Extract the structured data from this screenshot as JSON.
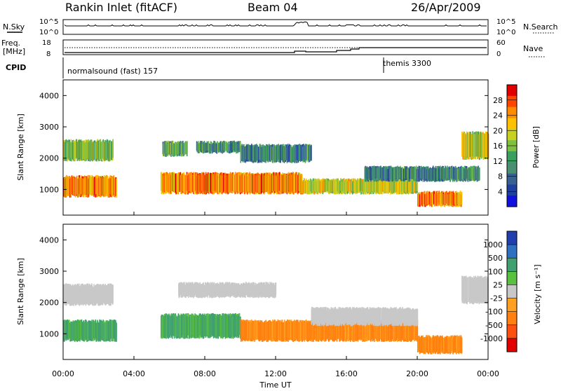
{
  "header": {
    "title": "Rankin Inlet (fitACF)",
    "beam": "Beam 04",
    "date": "26/Apr/2009"
  },
  "nsky_panel": {
    "left_label": "N.Sky",
    "right_label": "N.Search",
    "left_ticks": [
      "10^5",
      "10^0"
    ],
    "right_ticks": [
      "10^5",
      "10^0"
    ]
  },
  "freq_panel": {
    "left_label_1": "Freq.",
    "left_label_2": "[MHz]",
    "right_label": "Nave",
    "left_ticks": [
      "18",
      "8"
    ],
    "right_ticks": [
      "60",
      "0"
    ]
  },
  "cpid_panel": {
    "label": "CPID",
    "modes": [
      {
        "name": "normalsound (fast) 157",
        "start_hour": 0
      },
      {
        "name": "themis 3300",
        "start_hour": 18.1
      }
    ]
  },
  "chart_data": [
    {
      "type": "heatmap",
      "name": "power",
      "ylabel": "Slant Range [km]",
      "xlabel": "",
      "ylim": [
        180,
        4500
      ],
      "yticks": [
        "1000",
        "2000",
        "3000",
        "4000"
      ],
      "colorbar_label": "Power [dB]",
      "colorbar_ticks": [
        "28",
        "24",
        "20",
        "16",
        "12",
        "8",
        "4"
      ],
      "colorbar_colors": [
        "#e00000",
        "#ff4500",
        "#ff8c00",
        "#ffc000",
        "#c8d020",
        "#7fc040",
        "#3aa060",
        "#4a9070",
        "#3a6090",
        "#2040a0",
        "#1010e0"
      ],
      "echo_bands": [
        {
          "t0": 0.0,
          "t1": 2.8,
          "r_start": 1950,
          "r_end": 2550,
          "power_db": 14
        },
        {
          "t0": 0.0,
          "t1": 3.0,
          "r_start": 800,
          "r_end": 1400,
          "power_db": 22
        },
        {
          "t0": 5.6,
          "t1": 7.0,
          "r_start": 2100,
          "r_end": 2500,
          "power_db": 12
        },
        {
          "t0": 5.5,
          "t1": 13.5,
          "r_start": 900,
          "r_end": 1500,
          "power_db": 22
        },
        {
          "t0": 7.5,
          "t1": 10.0,
          "r_start": 2200,
          "r_end": 2500,
          "power_db": 8
        },
        {
          "t0": 10.0,
          "t1": 14.0,
          "r_start": 1900,
          "r_end": 2400,
          "power_db": 8
        },
        {
          "t0": 13.5,
          "t1": 20.0,
          "r_start": 900,
          "r_end": 1300,
          "power_db": 18
        },
        {
          "t0": 17.0,
          "t1": 23.5,
          "r_start": 1300,
          "r_end": 1700,
          "power_db": 8
        },
        {
          "t0": 20.0,
          "t1": 22.5,
          "r_start": 500,
          "r_end": 900,
          "power_db": 22
        },
        {
          "t0": 22.5,
          "t1": 24.0,
          "r_start": 2000,
          "r_end": 2800,
          "power_db": 18
        }
      ]
    },
    {
      "type": "heatmap",
      "name": "velocity",
      "ylabel": "Slant Range [km]",
      "xlabel": "Time UT",
      "ylim": [
        180,
        4500
      ],
      "yticks": [
        "1000",
        "2000",
        "3000",
        "4000"
      ],
      "xticks": [
        "00:00",
        "04:00",
        "08:00",
        "12:00",
        "16:00",
        "20:00",
        "00:00"
      ],
      "xlim_hours": [
        0,
        24
      ],
      "colorbar_label": "Velocity [m s⁻¹]",
      "colorbar_ticks": [
        "1000",
        "500",
        "100",
        "25",
        "-25",
        "-100",
        "-500",
        "-1000"
      ],
      "colorbar_colors": [
        "#2040b0",
        "#3070c0",
        "#40a070",
        "#5ac040",
        "#c8c8c8",
        "#ffa020",
        "#ff8010",
        "#ff5010",
        "#e00000"
      ],
      "echo_bands": [
        {
          "t0": 0.0,
          "t1": 2.8,
          "r_start": 1950,
          "r_end": 2550,
          "velocity": 0
        },
        {
          "t0": 0.0,
          "t1": 3.0,
          "r_start": 800,
          "r_end": 1400,
          "velocity": 300
        },
        {
          "t0": 5.5,
          "t1": 10.0,
          "r_start": 900,
          "r_end": 1600,
          "velocity": 300
        },
        {
          "t0": 6.5,
          "t1": 12.0,
          "r_start": 2200,
          "r_end": 2600,
          "velocity": 0
        },
        {
          "t0": 10.0,
          "t1": 20.0,
          "r_start": 800,
          "r_end": 1400,
          "velocity": -200
        },
        {
          "t0": 14.0,
          "t1": 20.0,
          "r_start": 1300,
          "r_end": 1800,
          "velocity": 0
        },
        {
          "t0": 20.0,
          "t1": 22.5,
          "r_start": 400,
          "r_end": 900,
          "velocity": -200
        },
        {
          "t0": 22.5,
          "t1": 24.0,
          "r_start": 2000,
          "r_end": 2800,
          "velocity": 0
        }
      ]
    }
  ]
}
